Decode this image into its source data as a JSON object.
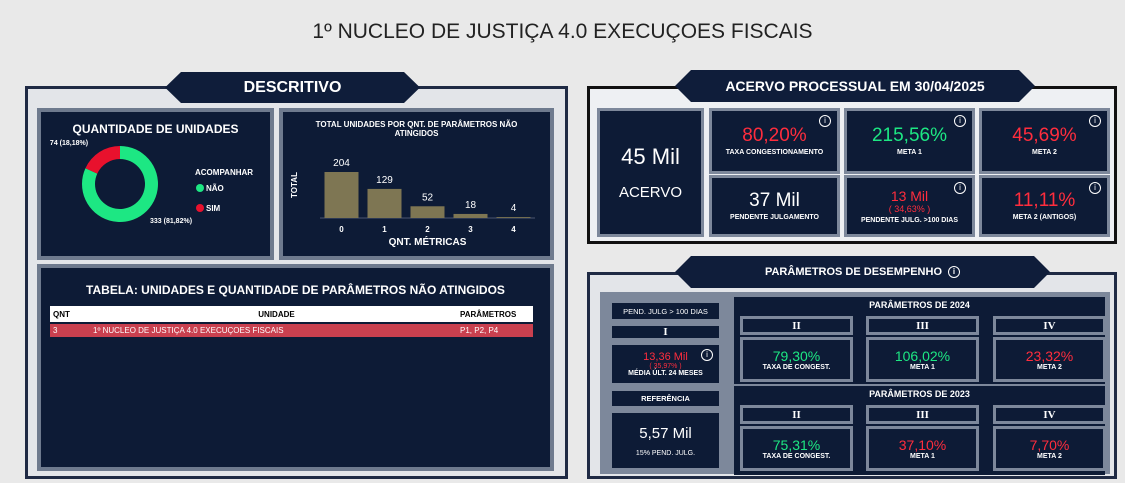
{
  "header": {
    "title": "1º NUCLEO DE JUSTIÇA 4.0 EXECUÇOES FISCAIS"
  },
  "descritivo": {
    "title": "DESCRITIVO",
    "table": {
      "title": "TABELA: UNIDADES E QUANTIDADE DE PARÂMETROS NÃO ATINGIDOS",
      "columns": [
        "QNT",
        "UNIDADE",
        "PARÂMETROS"
      ],
      "rows": [
        [
          "3",
          "1º NUCLEO DE JUSTIÇA 4.0 EXECUÇOES FISCAIS",
          "P1, P2, P4"
        ]
      ],
      "row_color": "#c9404f"
    }
  },
  "chart_data": [
    {
      "type": "donut",
      "title": "QUANTIDADE DE UNIDADES",
      "legend_title": "ACOMPANHAR",
      "categories": [
        "NÃO",
        "SIM"
      ],
      "values": [
        333,
        74
      ],
      "value_labels": [
        "333 (81,82%)",
        "74 (18,18%)"
      ],
      "colors": [
        "#1de783",
        "#e8112d"
      ]
    },
    {
      "type": "bar",
      "title": "TOTAL UNIDADES POR QNT. DE PARÂMETROS NÃO ATINGIDOS",
      "categories": [
        "0",
        "1",
        "2",
        "3",
        "4"
      ],
      "values": [
        204,
        129,
        52,
        18,
        4
      ],
      "color": "#7e7653",
      "xlabel": "QNT. MÉTRICAS",
      "ylabel": "TOTAL",
      "ylim": [
        0,
        204
      ]
    }
  ],
  "acervo": {
    "title": "ACERVO PROCESSUAL EM 30/04/2025",
    "total": {
      "value": "45 Mil",
      "label": "ACERVO"
    },
    "cards": [
      {
        "value": "80,20%",
        "label": "TAXA CONGESTIONAMENTO",
        "color": "#ff2d3d"
      },
      {
        "value": "215,56%",
        "label": "META 1",
        "color": "#1de783"
      },
      {
        "value": "45,69%",
        "label": "META 2",
        "color": "#ff2d3d"
      },
      {
        "value": "37 Mil",
        "label": "PENDENTE JULGAMENTO",
        "color": "#ffffff"
      },
      {
        "value": "13 Mil",
        "sub": "( 34,63% )",
        "label": "PENDENTE JULG. >100 DIAS",
        "color": "#ff2d3d"
      },
      {
        "value": "11,11%",
        "label": "META 2 (ANTIGOS)",
        "color": "#ff2d3d"
      }
    ]
  },
  "parametros": {
    "title": "PARÂMETROS DE DESEMPENHO",
    "pend": {
      "header": "PEND. JULG > 100 DIAS",
      "roman": "I",
      "value": "13,36 Mil",
      "sub": "( 35,97% )",
      "label": "MÉDIA ÚLT. 24 MESES",
      "color": "#ff2d3d"
    },
    "referencia": {
      "header": "REFERÊNCIA",
      "value": "5,57 Mil",
      "label": "15% PEND. JULG."
    },
    "groups": [
      {
        "title": "PARÂMETROS DE 2024",
        "items": [
          {
            "roman": "II",
            "value": "79,30%",
            "label": "TAXA DE CONGEST.",
            "color": "#1de783"
          },
          {
            "roman": "III",
            "value": "106,02%",
            "label": "META 1",
            "color": "#1de783"
          },
          {
            "roman": "IV",
            "value": "23,32%",
            "label": "META 2",
            "color": "#ff2d3d"
          }
        ]
      },
      {
        "title": "PARÂMETROS DE 2023",
        "items": [
          {
            "roman": "II",
            "value": "75,31%",
            "label": "TAXA DE CONGEST.",
            "color": "#1de783"
          },
          {
            "roman": "III",
            "value": "37,10%",
            "label": "META 1",
            "color": "#ff2d3d"
          },
          {
            "roman": "IV",
            "value": "7,70%",
            "label": "META 2",
            "color": "#ff2d3d"
          }
        ]
      }
    ]
  }
}
